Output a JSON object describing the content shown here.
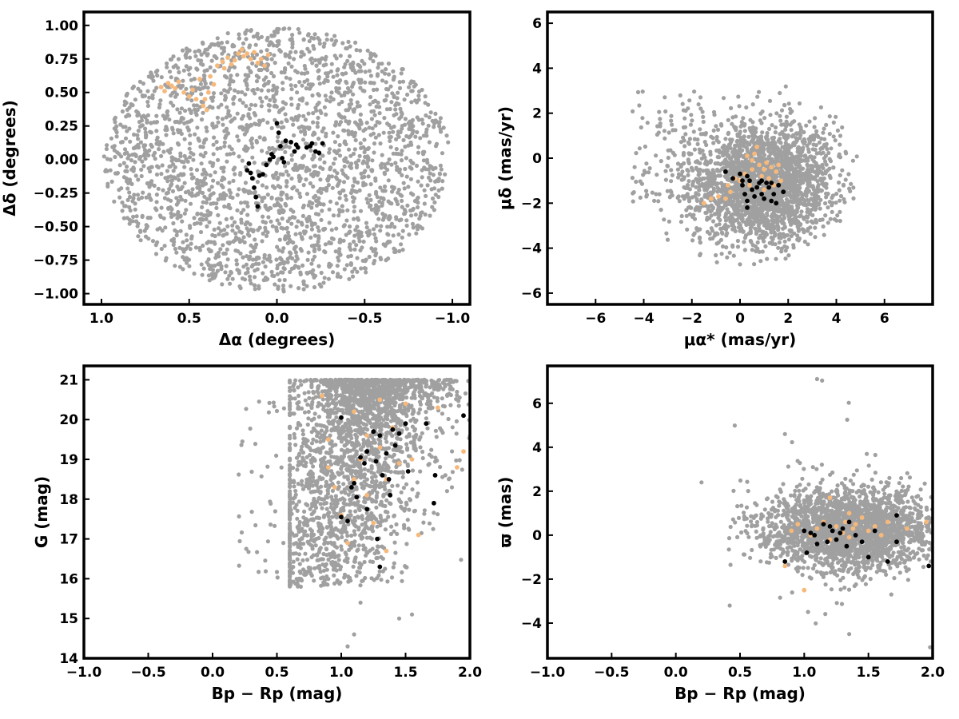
{
  "colors": {
    "field": "#a0a0a0",
    "group_a": "#f7b97b",
    "group_b": "#000000"
  },
  "chart_data": [
    {
      "type": "scatter",
      "xlabel": "Δα (degrees)",
      "ylabel": "Δδ (degrees)",
      "xlim": [
        1.1,
        -1.1
      ],
      "ylim": [
        -1.08,
        1.1
      ],
      "x_reversed": true,
      "xticks": [
        1.0,
        0.5,
        0.0,
        -0.5,
        -1.0
      ],
      "xtick_labels": [
        "1.0",
        "0.5",
        "0.0",
        "−0.5",
        "−1.0"
      ],
      "yticks": [
        -1.0,
        -0.75,
        -0.5,
        -0.25,
        0.0,
        0.25,
        0.5,
        0.75,
        1.0
      ],
      "ytick_labels": [
        "−1.00",
        "−0.75",
        "−0.50",
        "−0.25",
        "0.00",
        "0.25",
        "0.50",
        "0.75",
        "1.00"
      ],
      "series": [
        {
          "color": "#a0a0a0",
          "count": 2400,
          "distribution": "uniform disk, radius 1.0 degree, centred at (0, 0)"
        },
        {
          "color": "#f7b97b",
          "points": [
            [
              0.66,
              0.54
            ],
            [
              0.64,
              0.51
            ],
            [
              0.62,
              0.57
            ],
            [
              0.6,
              0.55
            ],
            [
              0.58,
              0.53
            ],
            [
              0.56,
              0.58
            ],
            [
              0.53,
              0.5
            ],
            [
              0.5,
              0.47
            ],
            [
              0.48,
              0.52
            ],
            [
              0.46,
              0.45
            ],
            [
              0.44,
              0.6
            ],
            [
              0.42,
              0.4
            ],
            [
              0.41,
              0.45
            ],
            [
              0.4,
              0.37
            ],
            [
              0.39,
              0.5
            ],
            [
              0.38,
              0.62
            ],
            [
              0.36,
              0.56
            ],
            [
              0.34,
              0.7
            ],
            [
              0.31,
              0.73
            ],
            [
              0.3,
              0.68
            ],
            [
              0.28,
              0.76
            ],
            [
              0.26,
              0.71
            ],
            [
              0.24,
              0.74
            ],
            [
              0.22,
              0.79
            ],
            [
              0.2,
              0.82
            ],
            [
              0.19,
              0.77
            ],
            [
              0.17,
              0.79
            ],
            [
              0.15,
              0.75
            ],
            [
              0.13,
              0.8
            ],
            [
              0.11,
              0.72
            ],
            [
              0.09,
              0.75
            ],
            [
              0.07,
              0.7
            ],
            [
              0.05,
              0.78
            ]
          ]
        },
        {
          "color": "#000000",
          "points": [
            [
              0.17,
              -0.08
            ],
            [
              0.16,
              -0.03
            ],
            [
              0.15,
              -0.1
            ],
            [
              0.14,
              -0.14
            ],
            [
              0.13,
              -0.21
            ],
            [
              0.12,
              -0.28
            ],
            [
              0.11,
              -0.35
            ],
            [
              0.1,
              -0.12
            ],
            [
              0.08,
              -0.11
            ],
            [
              0.06,
              -0.04
            ],
            [
              0.04,
              0.0
            ],
            [
              0.03,
              0.04
            ],
            [
              0.02,
              0.02
            ],
            [
              0.0,
              0.27
            ],
            [
              -0.01,
              0.2
            ],
            [
              -0.02,
              0.1
            ],
            [
              -0.03,
              0.01
            ],
            [
              -0.04,
              -0.02
            ],
            [
              -0.05,
              0.14
            ],
            [
              -0.08,
              0.13
            ],
            [
              -0.1,
              0.06
            ],
            [
              -0.11,
              0.11
            ],
            [
              -0.12,
              0.09
            ],
            [
              -0.17,
              0.09
            ],
            [
              -0.19,
              0.1
            ],
            [
              -0.2,
              0.12
            ],
            [
              -0.22,
              0.06
            ],
            [
              -0.24,
              0.05
            ],
            [
              -0.26,
              0.12
            ]
          ]
        }
      ]
    },
    {
      "type": "scatter",
      "xlabel": "μα* (mas/yr)",
      "ylabel": "μδ (mas/yr)",
      "xlim": [
        -8,
        8
      ],
      "ylim": [
        -6.5,
        6.5
      ],
      "xticks": [
        -6,
        -4,
        -2,
        0,
        2,
        4,
        6
      ],
      "xtick_labels": [
        "−6",
        "−4",
        "−2",
        "0",
        "2",
        "4",
        "6"
      ],
      "yticks": [
        -6,
        -4,
        -2,
        0,
        2,
        4,
        6
      ],
      "ytick_labels": [
        "−6",
        "−4",
        "−2",
        "0",
        "2",
        "4",
        "6"
      ],
      "series": [
        {
          "color": "#a0a0a0",
          "count": 2400,
          "distribution": "dense cloud centred near (1.0, -1.2), x spread -4.8 to 4.9, y spread -4.8 to 4.6"
        },
        {
          "color": "#f7b97b",
          "points": [
            [
              -1.5,
              -2.0
            ],
            [
              -1.2,
              -1.8
            ],
            [
              -0.9,
              -1.7
            ],
            [
              -0.6,
              -1.8
            ],
            [
              -0.4,
              -1.5
            ],
            [
              -0.2,
              -0.9
            ],
            [
              0.0,
              -1.0
            ],
            [
              0.2,
              -0.7
            ],
            [
              0.4,
              -1.2
            ],
            [
              0.5,
              -0.5
            ],
            [
              0.6,
              0.2
            ],
            [
              0.7,
              0.5
            ],
            [
              0.8,
              -0.3
            ],
            [
              0.9,
              -0.8
            ],
            [
              1.0,
              -0.5
            ],
            [
              1.1,
              -0.2
            ],
            [
              1.2,
              -0.9
            ],
            [
              1.3,
              -0.4
            ],
            [
              1.4,
              -1.2
            ],
            [
              1.5,
              -0.6
            ],
            [
              1.6,
              -0.3
            ],
            [
              1.7,
              -1.0
            ],
            [
              0.3,
              0.1
            ],
            [
              0.5,
              -0.1
            ],
            [
              1.0,
              -1.4
            ],
            [
              -0.5,
              -1.2
            ]
          ]
        },
        {
          "color": "#000000",
          "points": [
            [
              -0.6,
              -0.6
            ],
            [
              -0.3,
              -0.9
            ],
            [
              0.0,
              -0.7
            ],
            [
              0.1,
              -1.2
            ],
            [
              0.2,
              -1.6
            ],
            [
              0.3,
              -1.9
            ],
            [
              0.3,
              -2.2
            ],
            [
              0.4,
              -1.0
            ],
            [
              0.5,
              -1.4
            ],
            [
              0.6,
              -1.7
            ],
            [
              0.7,
              -1.3
            ],
            [
              0.8,
              -1.1
            ],
            [
              0.9,
              -1.6
            ],
            [
              1.0,
              -1.8
            ],
            [
              1.1,
              -1.1
            ],
            [
              1.2,
              -1.3
            ],
            [
              1.3,
              -1.1
            ],
            [
              1.4,
              -1.6
            ],
            [
              1.5,
              -2.0
            ],
            [
              1.6,
              -1.2
            ],
            [
              1.8,
              -1.5
            ],
            [
              0.1,
              -1.0
            ],
            [
              0.3,
              -0.8
            ],
            [
              0.9,
              -1.0
            ],
            [
              1.3,
              -1.9
            ]
          ]
        }
      ]
    },
    {
      "type": "scatter",
      "xlabel": "Bp − Rp (mag)",
      "ylabel": "G (mag)",
      "xlim": [
        -1.0,
        2.0
      ],
      "ylim": [
        14.0,
        21.35
      ],
      "xticks": [
        -1.0,
        -0.5,
        0.0,
        0.5,
        1.0,
        1.5,
        2.0
      ],
      "xtick_labels": [
        "−1.0",
        "−0.5",
        "0.0",
        "0.5",
        "1.0",
        "1.5",
        "2.0"
      ],
      "yticks": [
        14,
        15,
        16,
        17,
        18,
        19,
        20,
        21
      ],
      "ytick_labels": [
        "14",
        "15",
        "16",
        "17",
        "18",
        "19",
        "20",
        "21"
      ],
      "series": [
        {
          "color": "#a0a0a0",
          "count": 2400,
          "distribution": "colour-magnitude sequence, Bp-Rp mostly 0.8 to 2.0, G mostly 16.5 to 21, brightest near 14.3"
        },
        {
          "color": "#f7b97b",
          "points": [
            [
              0.85,
              20.6
            ],
            [
              0.9,
              19.5
            ],
            [
              0.9,
              18.8
            ],
            [
              0.95,
              18.3
            ],
            [
              1.0,
              17.6
            ],
            [
              1.05,
              16.9
            ],
            [
              1.1,
              20.2
            ],
            [
              1.15,
              19.0
            ],
            [
              1.2,
              18.1
            ],
            [
              1.25,
              17.4
            ],
            [
              1.3,
              20.5
            ],
            [
              1.3,
              19.3
            ],
            [
              1.35,
              18.5
            ],
            [
              1.35,
              16.7
            ],
            [
              1.4,
              19.8
            ],
            [
              1.45,
              18.9
            ],
            [
              1.5,
              20.4
            ],
            [
              1.55,
              19.0
            ],
            [
              1.6,
              17.1
            ],
            [
              1.75,
              20.3
            ],
            [
              1.9,
              18.8
            ],
            [
              1.95,
              19.2
            ],
            [
              1.1,
              18.5
            ],
            [
              1.2,
              19.6
            ]
          ]
        },
        {
          "color": "#000000",
          "points": [
            [
              1.0,
              20.05
            ],
            [
              1.0,
              17.55
            ],
            [
              1.05,
              17.45
            ],
            [
              1.08,
              18.3
            ],
            [
              1.1,
              18.4
            ],
            [
              1.12,
              18.05
            ],
            [
              1.15,
              19.05
            ],
            [
              1.18,
              18.9
            ],
            [
              1.2,
              19.2
            ],
            [
              1.2,
              17.75
            ],
            [
              1.25,
              19.7
            ],
            [
              1.27,
              18.95
            ],
            [
              1.28,
              17.0
            ],
            [
              1.3,
              16.3
            ],
            [
              1.3,
              19.6
            ],
            [
              1.32,
              18.6
            ],
            [
              1.35,
              19.15
            ],
            [
              1.37,
              18.5
            ],
            [
              1.38,
              18.1
            ],
            [
              1.4,
              19.75
            ],
            [
              1.42,
              19.35
            ],
            [
              1.45,
              19.65
            ],
            [
              1.5,
              19.9
            ],
            [
              1.52,
              18.7
            ],
            [
              1.66,
              19.9
            ],
            [
              1.72,
              17.9
            ],
            [
              1.73,
              18.6
            ],
            [
              1.95,
              20.1
            ]
          ]
        }
      ]
    },
    {
      "type": "scatter",
      "xlabel": "Bp − Rp (mag)",
      "ylabel": "ϖ (mas)",
      "xlim": [
        -1.0,
        2.0
      ],
      "ylim": [
        -5.6,
        7.7
      ],
      "xticks": [
        -1.0,
        -0.5,
        0.0,
        0.5,
        1.0,
        1.5,
        2.0
      ],
      "xtick_labels": [
        "−1.0",
        "−0.5",
        "0.0",
        "0.5",
        "1.0",
        "1.5",
        "2.0"
      ],
      "yticks": [
        -4,
        -2,
        0,
        2,
        4,
        6
      ],
      "ytick_labels": [
        "−4",
        "−2",
        "0",
        "2",
        "4",
        "6"
      ],
      "series": [
        {
          "color": "#a0a0a0",
          "count": 2400,
          "distribution": "cloud centred near parallax 0.3, Bp-Rp 0.8 to 2.0, spread -3 to 3 with outliers to 7.1 and -5.1"
        },
        {
          "color": "#f7b97b",
          "points": [
            [
              0.85,
              -1.4
            ],
            [
              0.9,
              0.2
            ],
            [
              0.95,
              0.5
            ],
            [
              1.0,
              -2.5
            ],
            [
              1.05,
              0.0
            ],
            [
              1.1,
              0.3
            ],
            [
              1.15,
              0.6
            ],
            [
              1.2,
              -0.2
            ],
            [
              1.25,
              0.4
            ],
            [
              1.3,
              0.1
            ],
            [
              1.32,
              0.6
            ],
            [
              1.35,
              -0.1
            ],
            [
              1.38,
              0.3
            ],
            [
              1.4,
              0.5
            ],
            [
              1.45,
              0.8
            ],
            [
              1.5,
              0.2
            ],
            [
              1.55,
              0.4
            ],
            [
              1.6,
              0.0
            ],
            [
              1.65,
              0.6
            ],
            [
              1.72,
              0.9
            ],
            [
              1.8,
              0.3
            ],
            [
              1.95,
              0.6
            ],
            [
              1.2,
              1.7
            ],
            [
              1.35,
              1.0
            ]
          ]
        },
        {
          "color": "#000000",
          "points": [
            [
              0.85,
              -1.2
            ],
            [
              1.0,
              0.2
            ],
            [
              1.02,
              -0.8
            ],
            [
              1.05,
              0.1
            ],
            [
              1.08,
              0.0
            ],
            [
              1.1,
              -0.4
            ],
            [
              1.15,
              0.5
            ],
            [
              1.18,
              -0.3
            ],
            [
              1.2,
              0.4
            ],
            [
              1.22,
              0.2
            ],
            [
              1.25,
              -0.2
            ],
            [
              1.28,
              0.1
            ],
            [
              1.3,
              0.3
            ],
            [
              1.33,
              -0.5
            ],
            [
              1.35,
              0.6
            ],
            [
              1.4,
              0.0
            ],
            [
              1.45,
              -0.3
            ],
            [
              1.5,
              -1.0
            ],
            [
              1.55,
              0.2
            ],
            [
              1.65,
              -1.2
            ],
            [
              1.72,
              0.9
            ],
            [
              1.72,
              -0.3
            ],
            [
              1.97,
              -1.4
            ]
          ]
        }
      ]
    }
  ]
}
